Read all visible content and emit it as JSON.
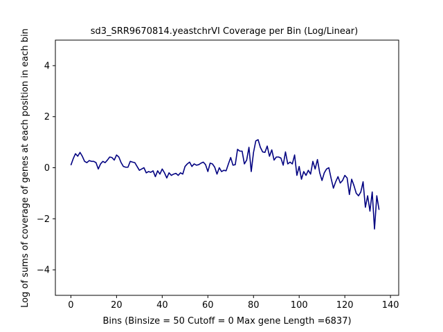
{
  "chart_data": {
    "type": "line",
    "title": "sd3_SRR9670814.yeastchrVI Coverage per Bin (Log/Linear)",
    "xlabel": "Bins  (Binsize = 50 Cutoff = 0 Max gene Length =6837)",
    "ylabel": "Log of sums of coverage of genes at each position in each bin",
    "xlim": [
      -6.8,
      143.6
    ],
    "ylim": [
      -5,
      5
    ],
    "xticks": [
      0,
      20,
      40,
      60,
      80,
      100,
      120,
      140
    ],
    "yticks": [
      -4,
      -2,
      0,
      2,
      4
    ],
    "grid": false,
    "series_color": "#000080",
    "series": [
      {
        "values": [
          0.1,
          0.35,
          0.55,
          0.45,
          0.6,
          0.45,
          0.25,
          0.2,
          0.28,
          0.25,
          0.25,
          0.2,
          -0.05,
          0.15,
          0.25,
          0.2,
          0.3,
          0.42,
          0.4,
          0.3,
          0.5,
          0.42,
          0.2,
          0.05,
          0.02,
          0.02,
          0.25,
          0.22,
          0.2,
          0.05,
          -0.1,
          -0.05,
          0.0,
          -0.2,
          -0.15,
          -0.18,
          -0.12,
          -0.35,
          -0.12,
          -0.25,
          -0.05,
          -0.2,
          -0.4,
          -0.2,
          -0.3,
          -0.25,
          -0.22,
          -0.3,
          -0.2,
          -0.25,
          0.05,
          0.15,
          0.22,
          0.05,
          0.15,
          0.1,
          0.12,
          0.18,
          0.22,
          0.12,
          -0.15,
          0.18,
          0.15,
          0.02,
          -0.25,
          0.0,
          -0.15,
          -0.1,
          -0.12,
          0.15,
          0.4,
          0.1,
          0.12,
          0.72,
          0.65,
          0.65,
          0.15,
          0.3,
          0.8,
          -0.15,
          0.6,
          1.05,
          1.1,
          0.8,
          0.62,
          0.6,
          0.85,
          0.45,
          0.7,
          0.3,
          0.42,
          0.42,
          0.38,
          0.1,
          0.62,
          0.15,
          0.22,
          0.15,
          0.5,
          -0.3,
          0.05,
          -0.45,
          -0.15,
          -0.3,
          -0.1,
          -0.25,
          0.25,
          -0.05,
          0.32,
          -0.2,
          -0.5,
          -0.2,
          -0.05,
          0.0,
          -0.42,
          -0.8,
          -0.55,
          -0.35,
          -0.6,
          -0.5,
          -0.3,
          -0.4,
          -1.05,
          -0.45,
          -0.7,
          -1.0,
          -1.1,
          -0.95,
          -0.55,
          -1.55,
          -1.1,
          -1.7,
          -0.95,
          -2.4,
          -1.1,
          -1.65
        ]
      }
    ]
  }
}
